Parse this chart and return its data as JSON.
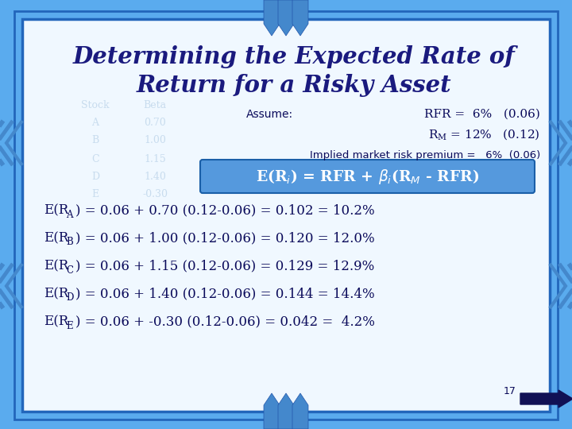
{
  "title_line1": "Determining the Expected Rate of",
  "title_line2": "Return for a Risky Asset",
  "title_color": "#1a1a7e",
  "bg_outer_top": "#b8d8f8",
  "bg_outer": "#5aabee",
  "bg_inner": "#f0f8ff",
  "border_color": "#2266bb",
  "stocks": [
    "A",
    "B",
    "C",
    "D",
    "E"
  ],
  "betas": [
    "0.70",
    "1.00",
    "1.15",
    "1.40",
    "-0.30"
  ],
  "eq_labels": [
    "A",
    "B",
    "C",
    "D",
    "E"
  ],
  "eq_texts": [
    ") = 0.06 + 0.70 (0.12-0.06) = 0.102 = 10.2%",
    ") = 0.06 + 1.00 (0.12-0.06) = 0.120 = 12.0%",
    ") = 0.06 + 1.15 (0.12-0.06) = 0.129 = 12.9%",
    ") = 0.06 + 1.40 (0.12-0.06) = 0.144 = 14.4%",
    ") = 0.06 + -0.30 (0.12-0.06) = 0.042 =  4.2%"
  ],
  "page_num": "17",
  "watermark_color": "#c8dcee",
  "text_dark": "#0a0a5a",
  "formula_bg": "#5599dd",
  "deco_blue": "#4488cc",
  "deco_dark": "#2255aa"
}
